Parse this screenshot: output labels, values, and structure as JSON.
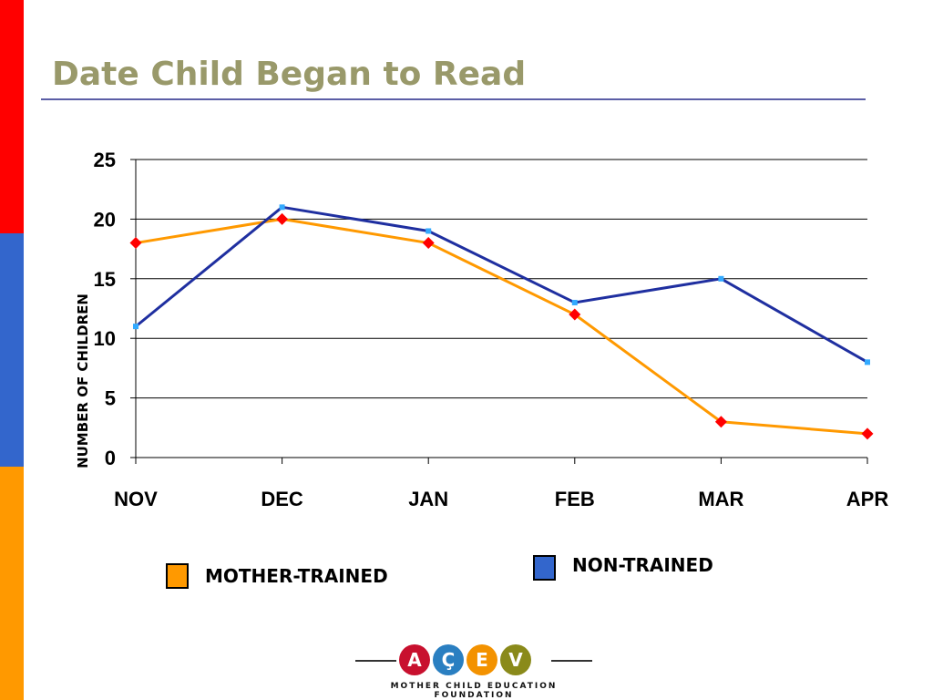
{
  "slide": {
    "title": "Date Child Began to Read",
    "accent_colors": {
      "red": "#ff0000",
      "blue": "#3366cc",
      "orange": "#ff9900",
      "title": "#99996a"
    }
  },
  "chart_data": {
    "type": "line",
    "title": "",
    "xlabel": "",
    "ylabel": "NUMBER OF CHILDREN",
    "categories": [
      "NOV",
      "DEC",
      "JAN",
      "FEB",
      "MAR",
      "APR"
    ],
    "ylim": [
      0,
      25
    ],
    "yticks": [
      0,
      5,
      10,
      15,
      20,
      25
    ],
    "grid": true,
    "legend_position": "bottom",
    "series": [
      {
        "name": "MOTHER-TRAINED",
        "color": "#ff9900",
        "marker": "diamond",
        "marker_color": "#ff0000",
        "values": [
          18,
          20,
          18,
          12,
          3,
          2
        ]
      },
      {
        "name": "NON-TRAINED",
        "color": "#1f2fa0",
        "marker": "square",
        "marker_color": "#33aaff",
        "values": [
          11,
          21,
          19,
          13,
          15,
          8
        ]
      }
    ]
  },
  "legend": {
    "mother_label": "MOTHER-TRAINED",
    "non_label": "NON-TRAINED",
    "mother_color": "#ff9900",
    "non_color": "#3366cc"
  },
  "logo": {
    "letters": [
      "A",
      "Ç",
      "E",
      "V"
    ],
    "caption": "MOTHER CHILD EDUCATION FOUNDATION"
  }
}
